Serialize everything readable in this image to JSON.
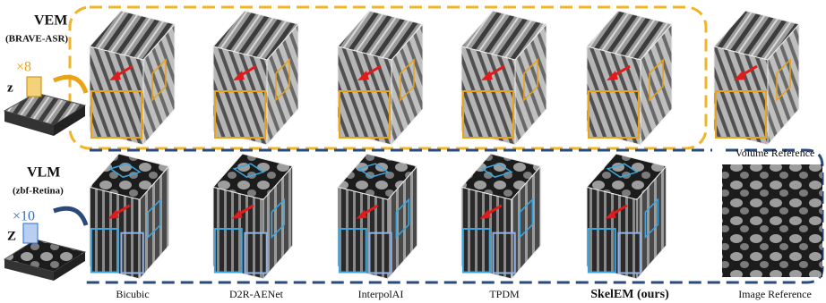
{
  "rows": {
    "vem": {
      "title": "VEM",
      "subtitle": "(BRAVE-ASR)",
      "factor": "×8",
      "axis": "z"
    },
    "vlm": {
      "title": "VLM",
      "subtitle": "(zbf-Retina)",
      "factor": "×10",
      "axis": "Z"
    }
  },
  "methods": [
    "Bicubic",
    "D2R-AENet",
    "InterpolAI",
    "TPDM",
    "SkelEM (ours)"
  ],
  "references": {
    "volume": "Volume Reference",
    "image": "Image Reference"
  }
}
